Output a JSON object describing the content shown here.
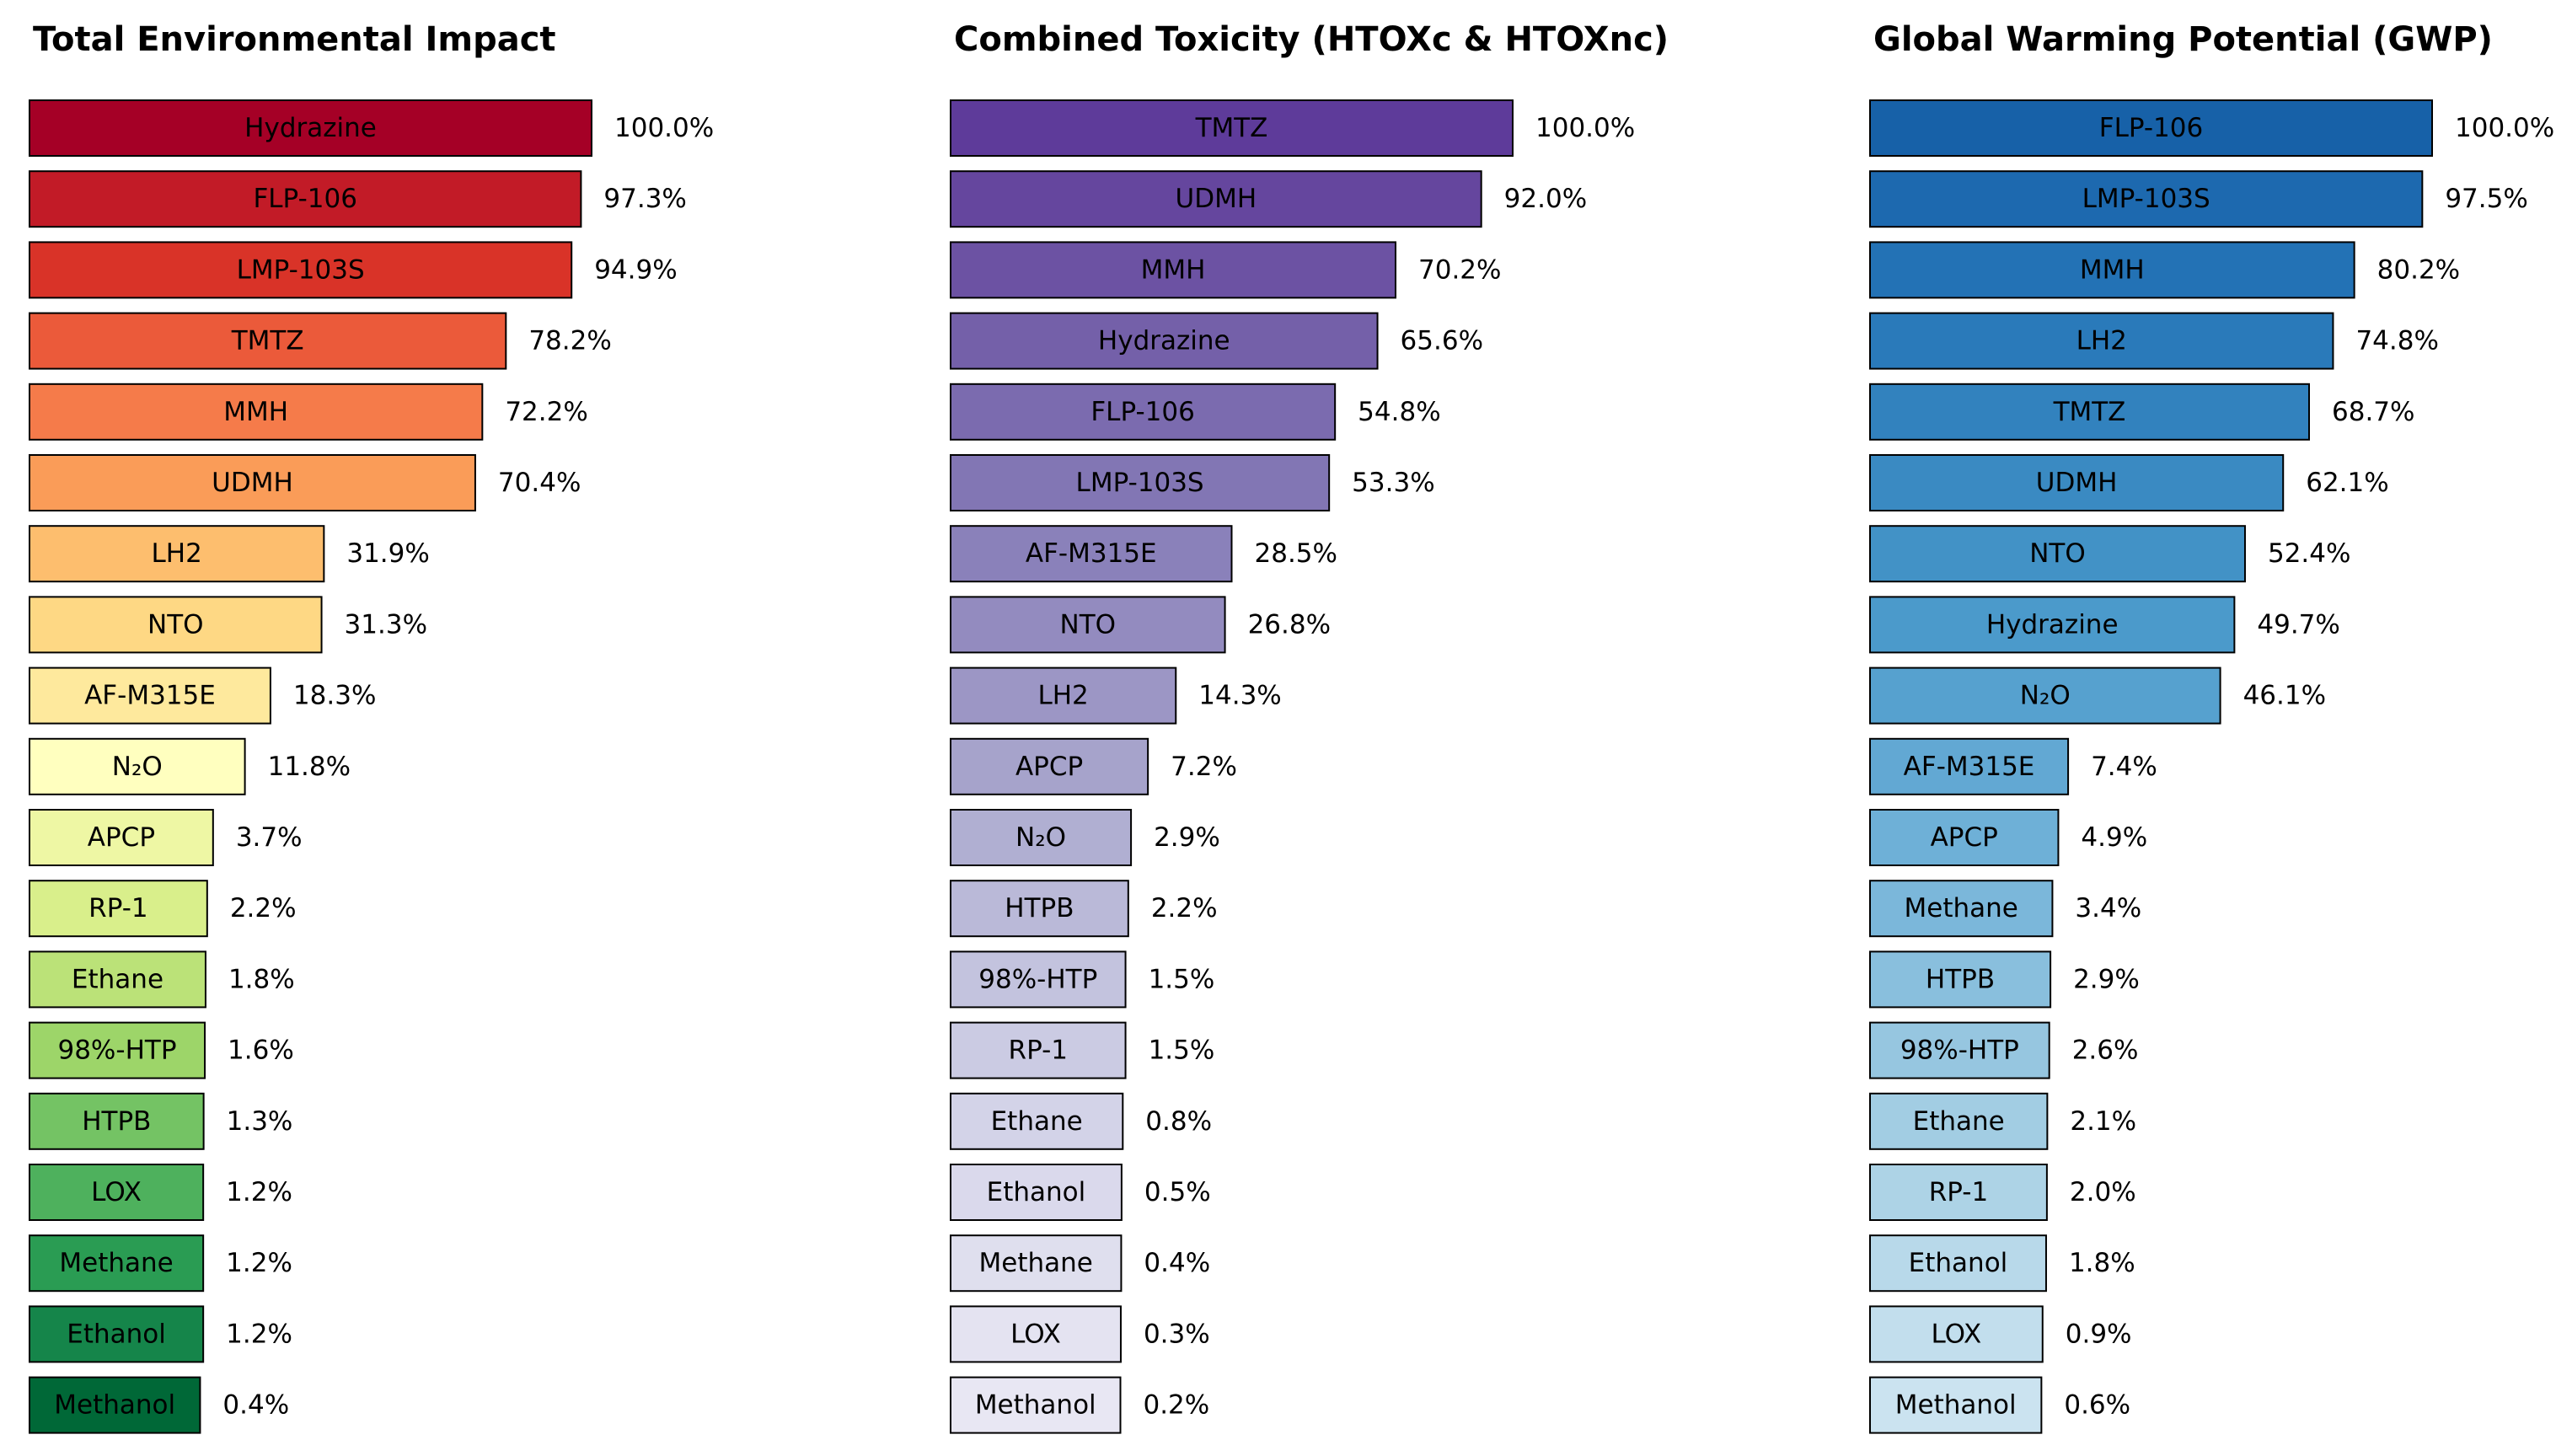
{
  "chart_data": [
    {
      "type": "barh",
      "title": "Total Environmental Impact",
      "categories": [
        "Hydrazine",
        "FLP-106",
        "LMP-103S",
        "TMTZ",
        "MMH",
        "UDMH",
        "LH2",
        "NTO",
        "AF-M315E",
        "N₂O",
        "APCP",
        "RP-1",
        "Ethane",
        "98%-HTP",
        "HTPB",
        "LOX",
        "Methane",
        "Ethanol",
        "Methanol"
      ],
      "values": [
        100.0,
        97.3,
        94.9,
        78.2,
        72.2,
        70.4,
        31.9,
        31.3,
        18.3,
        11.8,
        3.7,
        2.2,
        1.8,
        1.6,
        1.3,
        1.2,
        1.2,
        1.2,
        0.4
      ],
      "value_labels": [
        "100.0%",
        "97.3%",
        "94.9%",
        "78.2%",
        "72.2%",
        "70.4%",
        "31.9%",
        "31.3%",
        "18.3%",
        "11.8%",
        "3.7%",
        "2.2%",
        "1.8%",
        "1.6%",
        "1.3%",
        "1.2%",
        "1.2%",
        "1.2%",
        "0.4%"
      ],
      "colors": [
        "#a50026",
        "#c21b27",
        "#d93328",
        "#eb5a3a",
        "#f57b4a",
        "#fa9c58",
        "#fdbe6e",
        "#fed884",
        "#fee99d",
        "#ffffbf",
        "#eef7a4",
        "#d9ef8b",
        "#bbe278",
        "#9dd569",
        "#74c364",
        "#4eb15d",
        "#2a9c53",
        "#15854a",
        "#006837"
      ],
      "xlim": [
        -43,
        100
      ]
    },
    {
      "type": "barh",
      "title": "Combined Toxicity (HTOXc & HTOXnc)",
      "categories": [
        "TMTZ",
        "UDMH",
        "MMH",
        "Hydrazine",
        "FLP-106",
        "LMP-103S",
        "AF-M315E",
        "NTO",
        "LH2",
        "APCP",
        "N₂O",
        "HTPB",
        "98%-HTP",
        "RP-1",
        "Ethane",
        "Ethanol",
        "Methane",
        "LOX",
        "Methanol"
      ],
      "values": [
        100.0,
        92.0,
        70.2,
        65.6,
        54.8,
        53.3,
        28.5,
        26.8,
        14.3,
        7.2,
        2.9,
        2.2,
        1.5,
        1.5,
        0.8,
        0.5,
        0.4,
        0.3,
        0.2
      ],
      "value_labels": [
        "100.0%",
        "92.0%",
        "70.2%",
        "65.6%",
        "54.8%",
        "53.3%",
        "28.5%",
        "26.8%",
        "14.3%",
        "7.2%",
        "2.9%",
        "2.2%",
        "1.5%",
        "1.5%",
        "0.8%",
        "0.5%",
        "0.4%",
        "0.3%",
        "0.2%"
      ],
      "colors": [
        "#5e3b9a",
        "#65469e",
        "#6c52a3",
        "#7460a9",
        "#7b6baf",
        "#8276b4",
        "#8a81ba",
        "#938bbf",
        "#9c96c5",
        "#a6a3cb",
        "#b0afd2",
        "#bab9d8",
        "#c3c3de",
        "#cbcbe3",
        "#d3d3e8",
        "#dad9ec",
        "#dfdfee",
        "#e4e3f1",
        "#e8e7f3"
      ],
      "xlim": [
        -43,
        100
      ]
    },
    {
      "type": "barh",
      "title": "Global Warming Potential (GWP)",
      "categories": [
        "FLP-106",
        "LMP-103S",
        "MMH",
        "LH2",
        "TMTZ",
        "UDMH",
        "NTO",
        "Hydrazine",
        "N₂O",
        "AF-M315E",
        "APCP",
        "Methane",
        "HTPB",
        "98%-HTP",
        "Ethane",
        "RP-1",
        "Ethanol",
        "LOX",
        "Methanol"
      ],
      "values": [
        100.0,
        97.5,
        80.2,
        74.8,
        68.7,
        62.1,
        52.4,
        49.7,
        46.1,
        7.4,
        4.9,
        3.4,
        2.9,
        2.6,
        2.1,
        2.0,
        1.8,
        0.9,
        0.6
      ],
      "value_labels": [
        "100.0%",
        "97.5%",
        "80.2%",
        "74.8%",
        "68.7%",
        "62.1%",
        "52.4%",
        "49.7%",
        "46.1%",
        "7.4%",
        "4.9%",
        "3.4%",
        "2.9%",
        "2.6%",
        "2.1%",
        "2.0%",
        "1.8%",
        "0.9%",
        "0.6%"
      ],
      "colors": [
        "#1761a8",
        "#1d69af",
        "#2372b5",
        "#2a7aba",
        "#3282be",
        "#3a8ac2",
        "#4292c6",
        "#4b9acb",
        "#56a1cf",
        "#62a8d3",
        "#6eb0d7",
        "#7bb7da",
        "#89bfdd",
        "#96c6e0",
        "#a2cde3",
        "#add3e6",
        "#b8d9ea",
        "#c2deed",
        "#cbe3f0"
      ],
      "xlim": [
        -43,
        100
      ]
    }
  ]
}
